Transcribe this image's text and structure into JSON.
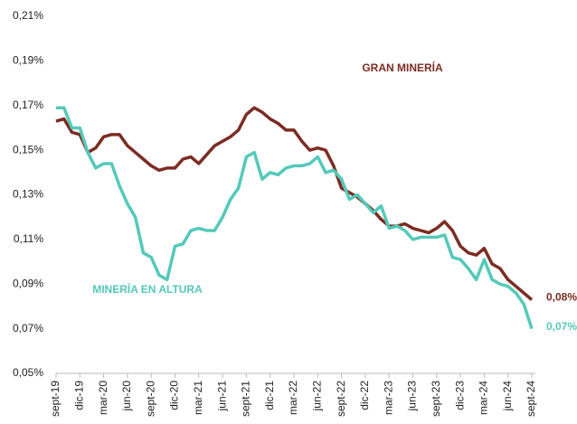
{
  "chart_data": {
    "type": "line",
    "categories": [
      "sept-19",
      null,
      null,
      "dic-19",
      null,
      null,
      "mar-20",
      null,
      null,
      "jun-20",
      null,
      null,
      "sept-20",
      null,
      null,
      "dic-20",
      null,
      null,
      "mar-21",
      null,
      null,
      "jun-21",
      null,
      null,
      "sept-21",
      null,
      null,
      "dic-21",
      null,
      null,
      "mar-22",
      null,
      null,
      "jun-22",
      null,
      null,
      "sept-22",
      null,
      null,
      "dic-22",
      null,
      null,
      "mar-23",
      null,
      null,
      "jun-23",
      null,
      null,
      "sept-23",
      null,
      null,
      "dic-23",
      null,
      null,
      "mar-24",
      null,
      null,
      "jun-24",
      null,
      null,
      "sept-24"
    ],
    "series": [
      {
        "name": "GRAN MINERÍA",
        "color": "#7b2c22",
        "values": [
          0.163,
          0.164,
          0.158,
          0.157,
          0.149,
          0.151,
          0.156,
          0.157,
          0.157,
          0.152,
          0.149,
          0.146,
          0.143,
          0.141,
          0.142,
          0.142,
          0.146,
          0.147,
          0.144,
          0.148,
          0.152,
          0.154,
          0.156,
          0.159,
          0.166,
          0.169,
          0.167,
          0.164,
          0.162,
          0.159,
          0.159,
          0.154,
          0.15,
          0.151,
          0.15,
          0.143,
          0.133,
          0.131,
          0.129,
          0.126,
          0.123,
          0.119,
          0.116,
          0.116,
          0.117,
          0.115,
          0.114,
          0.113,
          0.115,
          0.118,
          0.114,
          0.107,
          0.104,
          0.103,
          0.106,
          0.099,
          0.097,
          0.092,
          0.089,
          0.086,
          0.083
        ],
        "value_labels": [
          null,
          null,
          null,
          null,
          null,
          null,
          null,
          null,
          null,
          null,
          null,
          null,
          null,
          null,
          null,
          null,
          null,
          null,
          null,
          null,
          null,
          null,
          null,
          null,
          null,
          null,
          null,
          null,
          null,
          null,
          null,
          null,
          null,
          null,
          null,
          null,
          null,
          null,
          null,
          null,
          null,
          null,
          null,
          null,
          null,
          null,
          null,
          null,
          null,
          null,
          null,
          null,
          null,
          null,
          null,
          null,
          null,
          null,
          null,
          null,
          "0,08%"
        ]
      },
      {
        "name": "MINERÍA EN ALTURA",
        "color": "#55c9b9",
        "values": [
          0.169,
          0.169,
          0.16,
          0.16,
          0.149,
          0.142,
          0.144,
          0.144,
          0.134,
          0.126,
          0.12,
          0.104,
          0.102,
          0.094,
          0.092,
          0.107,
          0.108,
          0.114,
          0.115,
          0.114,
          0.114,
          0.12,
          0.128,
          0.133,
          0.147,
          0.149,
          0.137,
          0.14,
          0.139,
          0.142,
          0.143,
          0.143,
          0.144,
          0.147,
          0.14,
          0.141,
          0.137,
          0.128,
          0.13,
          0.126,
          0.122,
          0.125,
          0.115,
          0.116,
          0.114,
          0.11,
          0.111,
          0.111,
          0.111,
          0.112,
          0.102,
          0.101,
          0.097,
          0.092,
          0.101,
          0.092,
          0.09,
          0.089,
          0.086,
          0.081,
          0.07
        ],
        "value_labels": [
          null,
          null,
          null,
          null,
          null,
          null,
          null,
          null,
          null,
          null,
          null,
          null,
          null,
          null,
          null,
          null,
          null,
          null,
          null,
          null,
          null,
          null,
          null,
          null,
          null,
          null,
          null,
          null,
          null,
          null,
          null,
          null,
          null,
          null,
          null,
          null,
          null,
          null,
          null,
          null,
          null,
          null,
          null,
          null,
          null,
          null,
          null,
          null,
          null,
          null,
          null,
          null,
          null,
          null,
          null,
          null,
          null,
          null,
          null,
          null,
          "0,07%"
        ]
      }
    ],
    "ylim": [
      0.05,
      0.21
    ],
    "yticks": [
      {
        "value": 0.05,
        "label": "0,05%"
      },
      {
        "value": 0.07,
        "label": "0,07%"
      },
      {
        "value": 0.09,
        "label": "0,09%"
      },
      {
        "value": 0.11,
        "label": "0,11%"
      },
      {
        "value": 0.13,
        "label": "0,13%"
      },
      {
        "value": 0.15,
        "label": "0,15%"
      },
      {
        "value": 0.17,
        "label": "0,17%"
      },
      {
        "value": 0.19,
        "label": "0,19%"
      },
      {
        "value": 0.21,
        "label": "0,21%"
      }
    ],
    "grid": false
  }
}
